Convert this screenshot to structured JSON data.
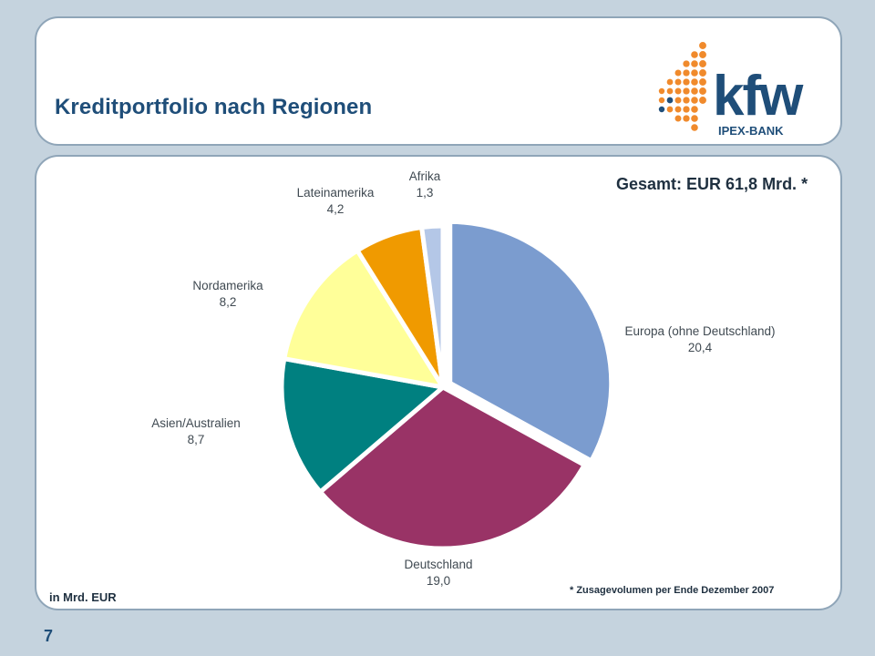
{
  "header": {
    "title": "Kreditportfolio nach Regionen",
    "logo": {
      "brand": "kfw",
      "sub": "IPEX-BANK",
      "colors": {
        "orange": "#f08a2c",
        "navy": "#1f4e79"
      }
    }
  },
  "footer": {
    "page_number": "7"
  },
  "chart_data": {
    "type": "pie",
    "title": "Kreditportfolio nach Regionen",
    "total_label": "Gesamt: EUR 61,8 Mrd. *",
    "unit_note": "in Mrd. EUR",
    "footnote": "* Zusagevolumen per Ende Dezember 2007",
    "start_angle_deg": 0,
    "direction": "clockwise",
    "slices": [
      {
        "label": "Europa (ohne Deutschland)",
        "value": 20.4,
        "value_label": "20,4",
        "color": "#7b9ccf",
        "exploded": true
      },
      {
        "label": "Deutschland",
        "value": 19.0,
        "value_label": "19,0",
        "color": "#993366",
        "exploded": false
      },
      {
        "label": "Asien/Australien",
        "value": 8.7,
        "value_label": "8,7",
        "color": "#008080",
        "exploded": false
      },
      {
        "label": "Nordamerika",
        "value": 8.2,
        "value_label": "8,2",
        "color": "#ffff99",
        "exploded": false
      },
      {
        "label": "Lateinamerika",
        "value": 4.2,
        "value_label": "4,2",
        "color": "#f09a00",
        "exploded": false
      },
      {
        "label": "Afrika",
        "value": 1.3,
        "value_label": "1,3",
        "color": "#b4c7e7",
        "exploded": false
      }
    ]
  }
}
